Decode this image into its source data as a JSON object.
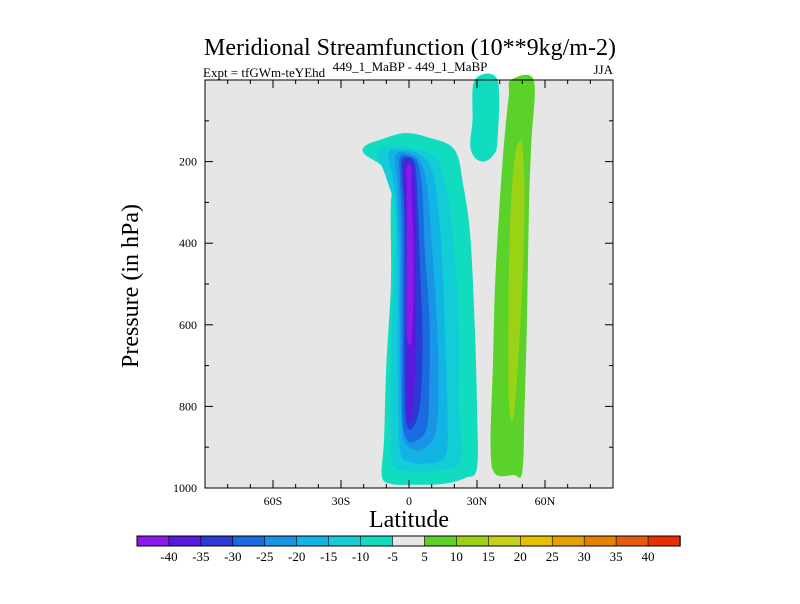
{
  "chart_data": {
    "type": "contour",
    "title": "Meridional Streamfunction (10**9kg/m-2)",
    "subtitle_left": "Expt = tfGWm-teYEhd",
    "subtitle_center": "449_1_MaBP - 449_1_MaBP",
    "subtitle_right": "JJA",
    "xlabel": "Latitude",
    "ylabel": "Pressure (in hPa)",
    "xlim": [
      -90,
      90
    ],
    "ylim": [
      1000,
      0
    ],
    "x_ticks": [
      {
        "value": -60,
        "label": "60S"
      },
      {
        "value": -30,
        "label": "30S"
      },
      {
        "value": 0,
        "label": "0"
      },
      {
        "value": 30,
        "label": "30N"
      },
      {
        "value": 60,
        "label": "60N"
      }
    ],
    "y_ticks": [
      {
        "value": 200,
        "label": "200"
      },
      {
        "value": 400,
        "label": "400"
      },
      {
        "value": 600,
        "label": "600"
      },
      {
        "value": 800,
        "label": "800"
      },
      {
        "value": 1000,
        "label": "1000"
      }
    ],
    "background_color": "#e6e6e6",
    "colorbar": {
      "labels": [
        "-40",
        "-35",
        "-30",
        "-25",
        "-20",
        "-15",
        "-10",
        "-5",
        "5",
        "10",
        "15",
        "20",
        "25",
        "30",
        "35",
        "40"
      ],
      "colors": [
        "#8a19ea",
        "#5a19dd",
        "#2a3ad2",
        "#1a6be0",
        "#1a95e6",
        "#12b4e6",
        "#12cdd6",
        "#12dcc0",
        "#e6e6e6",
        "#5ad22a",
        "#9bd215",
        "#c6d21a",
        "#e6c000",
        "#e6a000",
        "#e68000",
        "#e65a10",
        "#e63000"
      ]
    },
    "regions": [
      {
        "name": "southern-cell-edge",
        "level": "-5 to -10",
        "color": "#12dcc0",
        "outline": [
          [
            -19,
            160
          ],
          [
            -12,
            145
          ],
          [
            -2,
            130
          ],
          [
            8,
            140
          ],
          [
            20,
            170
          ],
          [
            24,
            260
          ],
          [
            27,
            380
          ],
          [
            29,
            600
          ],
          [
            30,
            800
          ],
          [
            30,
            950
          ],
          [
            25,
            975
          ],
          [
            15,
            990
          ],
          [
            0,
            992
          ],
          [
            -8,
            990
          ],
          [
            -12,
            970
          ],
          [
            -11,
            880
          ],
          [
            -10,
            700
          ],
          [
            -8,
            500
          ],
          [
            -8,
            300
          ],
          [
            -6,
            250
          ],
          [
            -12,
            210
          ],
          [
            -20,
            180
          ]
        ]
      },
      {
        "name": "southern-cell-ring-1",
        "level": "-10 to -15",
        "color": "#12cdd6",
        "outline": [
          [
            -14,
            175
          ],
          [
            -6,
            162
          ],
          [
            2,
            168
          ],
          [
            12,
            190
          ],
          [
            17,
            280
          ],
          [
            20,
            420
          ],
          [
            22,
            600
          ],
          [
            22,
            800
          ],
          [
            23,
            930
          ],
          [
            15,
            955
          ],
          [
            5,
            960
          ],
          [
            -6,
            950
          ],
          [
            -8,
            900
          ],
          [
            -8,
            700
          ],
          [
            -7,
            500
          ],
          [
            -6,
            330
          ],
          [
            -10,
            240
          ]
        ]
      },
      {
        "name": "southern-cell-ring-2",
        "level": "-15 to -20",
        "color": "#12b4e6",
        "outline": [
          [
            -9,
            180
          ],
          [
            -3,
            172
          ],
          [
            4,
            180
          ],
          [
            10,
            220
          ],
          [
            13,
            320
          ],
          [
            15,
            480
          ],
          [
            16,
            650
          ],
          [
            17,
            820
          ],
          [
            16,
            920
          ],
          [
            8,
            940
          ],
          [
            0,
            935
          ],
          [
            -4,
            900
          ],
          [
            -5,
            700
          ],
          [
            -5,
            450
          ],
          [
            -6,
            280
          ]
        ]
      },
      {
        "name": "southern-cell-ring-3",
        "level": "-20 to -25",
        "color": "#1a95e6",
        "outline": [
          [
            -6,
            185
          ],
          [
            0,
            180
          ],
          [
            5,
            200
          ],
          [
            8,
            260
          ],
          [
            10,
            400
          ],
          [
            12,
            560
          ],
          [
            13,
            720
          ],
          [
            12,
            860
          ],
          [
            6,
            905
          ],
          [
            0,
            900
          ],
          [
            -3,
            860
          ],
          [
            -4,
            650
          ],
          [
            -4,
            420
          ],
          [
            -5,
            260
          ]
        ]
      },
      {
        "name": "southern-cell-ring-4",
        "level": "-25 to -30",
        "color": "#1a6be0",
        "outline": [
          [
            -4,
            190
          ],
          [
            0,
            186
          ],
          [
            4,
            205
          ],
          [
            6,
            280
          ],
          [
            7,
            420
          ],
          [
            9,
            580
          ],
          [
            9,
            740
          ],
          [
            8,
            850
          ],
          [
            3,
            885
          ],
          [
            -1,
            880
          ],
          [
            -3,
            820
          ],
          [
            -3,
            600
          ],
          [
            -3,
            380
          ],
          [
            -4,
            240
          ]
        ]
      },
      {
        "name": "southern-cell-ring-5",
        "level": "-30 to -35",
        "color": "#2a3ad2",
        "outline": [
          [
            -3,
            195
          ],
          [
            1,
            192
          ],
          [
            3,
            220
          ],
          [
            4,
            330
          ],
          [
            5,
            480
          ],
          [
            6,
            640
          ],
          [
            5,
            790
          ],
          [
            2,
            850
          ],
          [
            -1,
            845
          ],
          [
            -2,
            760
          ],
          [
            -2,
            540
          ],
          [
            -2,
            340
          ],
          [
            -3,
            240
          ]
        ]
      },
      {
        "name": "southern-cell-core",
        "level": "-35 to -40",
        "color": "#5a19dd",
        "outline": [
          [
            -2,
            205
          ],
          [
            0,
            200
          ],
          [
            2,
            225
          ],
          [
            3,
            340
          ],
          [
            3,
            480
          ],
          [
            3,
            640
          ],
          [
            2,
            790
          ],
          [
            0,
            840
          ],
          [
            -1,
            800
          ],
          [
            -1,
            600
          ],
          [
            -1,
            400
          ],
          [
            -2,
            260
          ]
        ]
      },
      {
        "name": "southern-cell-peak",
        "level": "< -40",
        "color": "#8a19ea",
        "outline": [
          [
            -1,
            215
          ],
          [
            1,
            212
          ],
          [
            1,
            260
          ],
          [
            2,
            400
          ],
          [
            2,
            520
          ],
          [
            1,
            640
          ],
          [
            -1,
            620
          ],
          [
            -1,
            420
          ],
          [
            -1,
            280
          ]
        ]
      },
      {
        "name": "northern-upper-cyan",
        "level": "-5 to -10",
        "color": "#12dcc0",
        "outline": [
          [
            29,
            0
          ],
          [
            39,
            0
          ],
          [
            39,
            150
          ],
          [
            37,
            185
          ],
          [
            33,
            200
          ],
          [
            29,
            190
          ],
          [
            27,
            160
          ],
          [
            28,
            100
          ]
        ]
      },
      {
        "name": "northern-cell-outer",
        "level": "5 to 10",
        "color": "#5ad22a",
        "outline": [
          [
            45,
            0
          ],
          [
            55,
            0
          ],
          [
            54,
            150
          ],
          [
            53,
            300
          ],
          [
            52,
            600
          ],
          [
            51,
            800
          ],
          [
            50,
            960
          ],
          [
            46,
            968
          ],
          [
            38,
            965
          ],
          [
            36,
            900
          ],
          [
            37,
            700
          ],
          [
            38,
            500
          ],
          [
            40,
            300
          ],
          [
            42,
            150
          ],
          [
            44,
            40
          ]
        ]
      },
      {
        "name": "northern-cell-core",
        "level": "10 to 15",
        "color": "#9bd215",
        "outline": [
          [
            49,
            150
          ],
          [
            50,
            160
          ],
          [
            51,
            280
          ],
          [
            50,
            500
          ],
          [
            48,
            700
          ],
          [
            46,
            830
          ],
          [
            44,
            780
          ],
          [
            44,
            500
          ],
          [
            45,
            300
          ],
          [
            47,
            180
          ]
        ]
      }
    ]
  }
}
